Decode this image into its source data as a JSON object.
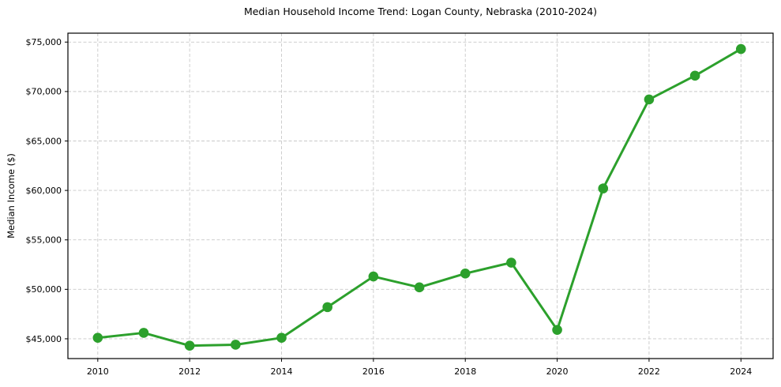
{
  "page": {
    "background_color": "#ffffff"
  },
  "header": {
    "title": "Median Household Income Trend: Logan County, Nebraska (2010-2024)"
  },
  "axes": {
    "y_label": "Median Income ($)",
    "x_label": ""
  },
  "chart_data": {
    "type": "line",
    "title": "Median Household Income Trend: Logan County, Nebraska (2010-2024)",
    "xlabel": "",
    "ylabel": "Median Income ($)",
    "x": [
      2010,
      2011,
      2012,
      2013,
      2014,
      2015,
      2016,
      2017,
      2018,
      2019,
      2020,
      2021,
      2022,
      2023,
      2024
    ],
    "series": [
      {
        "name": "Median Household Income",
        "values": [
          45100,
          45600,
          44300,
          44400,
          45100,
          48200,
          51300,
          50200,
          51600,
          52700,
          45900,
          60200,
          69200,
          71600,
          74300
        ],
        "color": "#2ca02c",
        "marker": "circle"
      }
    ],
    "xticks": [
      2010,
      2012,
      2014,
      2016,
      2018,
      2020,
      2022,
      2024
    ],
    "xtick_labels": [
      "2010",
      "2012",
      "2014",
      "2016",
      "2018",
      "2020",
      "2022",
      "2024"
    ],
    "yticks": [
      45000,
      50000,
      55000,
      60000,
      65000,
      70000,
      75000
    ],
    "ytick_labels": [
      "$45,000",
      "$50,000",
      "$55,000",
      "$60,000",
      "$65,000",
      "$70,000",
      "$75,000"
    ],
    "xlim": [
      2009.35,
      2024.7
    ],
    "ylim": [
      43000,
      75900
    ],
    "grid": true,
    "grid_color": "#c9c9c9",
    "grid_dash": "4 2.5",
    "spine_color": "#000000",
    "tick_color": "#000000",
    "tick_label_size": 11,
    "legend": "none",
    "line_width": 3,
    "marker_radius": 6.3
  }
}
